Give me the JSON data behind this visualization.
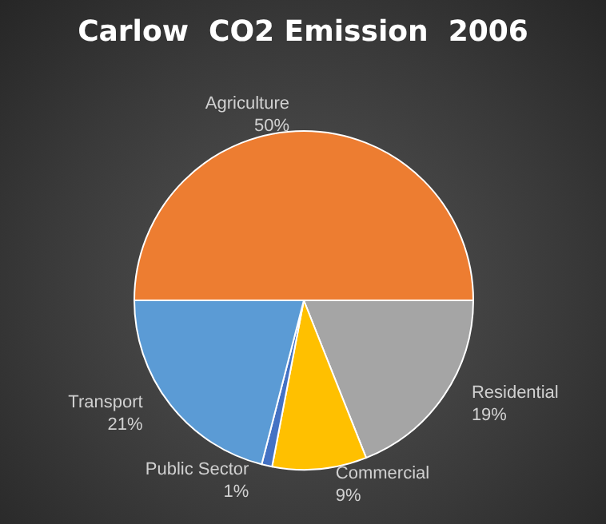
{
  "chart_data": {
    "type": "pie",
    "title": "Carlow  CO2 Emission  2006",
    "categories": [
      "Agriculture",
      "Residential",
      "Commercial",
      "Public Sector",
      "Transport"
    ],
    "values": [
      50,
      19,
      9,
      1,
      21
    ],
    "colors": [
      "#ed7d31",
      "#a5a5a5",
      "#ffc000",
      "#4472c4",
      "#5b9bd5"
    ],
    "value_labels": [
      "50%",
      "19%",
      "9%",
      "1%",
      "21%"
    ],
    "legend": false
  }
}
